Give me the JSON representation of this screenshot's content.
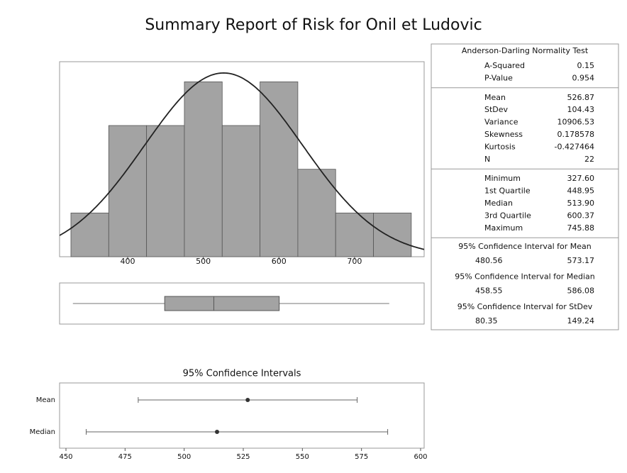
{
  "title": "Summary Report of Risk for Onil et Ludovic",
  "chart_data": [
    {
      "type": "histogram",
      "bins": [
        325,
        375,
        425,
        475,
        525,
        575,
        625,
        675,
        725,
        775
      ],
      "values": [
        1,
        3,
        3,
        4,
        3,
        4,
        2,
        1,
        1
      ],
      "color": "#a3a3a3",
      "fit": {
        "mean": 526.87,
        "stdev": 104.43,
        "n": 22
      },
      "xlim": [
        310,
        792
      ],
      "xticks": [
        400,
        500,
        600,
        700
      ],
      "ylim": [
        0,
        4.46
      ]
    },
    {
      "type": "boxplot",
      "values": {
        "min": 327.6,
        "q1": 448.95,
        "median": 513.9,
        "q3": 600.37,
        "max": 745.88
      },
      "color": "#a3a3a3",
      "xlim": [
        310,
        792
      ]
    },
    {
      "type": "interval",
      "title": "95% Confidence Intervals",
      "categories": [
        "Mean",
        "Median"
      ],
      "values": [
        526.87,
        513.9
      ],
      "lower": [
        480.56,
        458.55
      ],
      "upper": [
        573.17,
        586.08
      ],
      "xlim": [
        447.3,
        601.5
      ],
      "xticks": [
        450,
        475,
        500,
        525,
        550,
        575,
        600
      ]
    }
  ],
  "stats_table": {
    "sections": [
      {
        "title": "Anderson-Darling Normality Test",
        "rows": [
          [
            "A-Squared",
            "0.15"
          ],
          [
            "P-Value",
            "0.954"
          ]
        ]
      },
      {
        "rows": [
          [
            "Mean",
            "526.87"
          ],
          [
            "StDev",
            "104.43"
          ],
          [
            "Variance",
            "10906.53"
          ],
          [
            "Skewness",
            "0.178578"
          ],
          [
            "Kurtosis",
            "-0.427464"
          ],
          [
            "N",
            "22"
          ]
        ]
      },
      {
        "rows": [
          [
            "Minimum",
            "327.60"
          ],
          [
            "1st Quartile",
            "448.95"
          ],
          [
            "Median",
            "513.90"
          ],
          [
            "3rd Quartile",
            "600.37"
          ],
          [
            "Maximum",
            "745.88"
          ]
        ]
      },
      {
        "title": "95% Confidence Interval for Mean",
        "rows": [
          [
            "480.56",
            "573.17"
          ]
        ]
      },
      {
        "title": "95% Confidence Interval for Median",
        "rows": [
          [
            "458.55",
            "586.08"
          ]
        ]
      },
      {
        "title": "95% Confidence Interval for StDev",
        "rows": [
          [
            "80.35",
            "149.24"
          ]
        ]
      }
    ]
  }
}
